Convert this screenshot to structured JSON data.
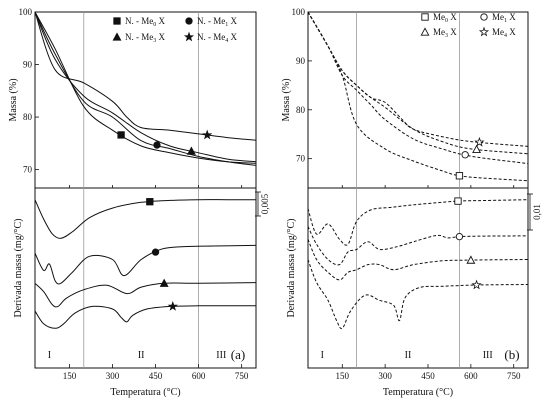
{
  "chart_data": [
    {
      "panel": "(a)",
      "type": "line",
      "top_plot": {
        "ylabel": "Massa (%)",
        "yticks": [
          "100",
          "90",
          "80",
          "70"
        ],
        "ylim": [
          66.5,
          100
        ],
        "series": [
          {
            "name": "N. - Me0 X",
            "marker": "square",
            "x": [
              30,
              100,
              200,
              300,
              400,
              500,
              600,
              700,
              800
            ],
            "y": [
              100,
              93,
              82,
              77.5,
              74.5,
              73.2,
              72.2,
              71.5,
              71.2
            ]
          },
          {
            "name": "N. - Me1 X",
            "marker": "circle",
            "x": [
              30,
              100,
              200,
              300,
              400,
              500,
              600,
              700,
              800
            ],
            "y": [
              100,
              92,
              83,
              80,
              75.5,
              74,
              72.5,
              71.5,
              70.8
            ]
          },
          {
            "name": "N. - Me3 X",
            "marker": "triangle",
            "x": [
              30,
              100,
              200,
              300,
              400,
              500,
              600,
              700,
              800
            ],
            "y": [
              100,
              91,
              84,
              80.8,
              77,
              74.5,
              73.2,
              72,
              71.5
            ]
          },
          {
            "name": "N. - Me4 X",
            "marker": "star",
            "x": [
              30,
              100,
              200,
              300,
              350,
              400,
              500,
              600,
              700,
              800
            ],
            "y": [
              100,
              89,
              86.5,
              83,
              80,
              78,
              77.5,
              76.8,
              76.1,
              75.6
            ]
          }
        ]
      },
      "bottom_plot": {
        "ylabel": "Derivada massa (mg/°C)",
        "scale_bar": "0,005",
        "series": [
          {
            "name": "N. - Me0 X",
            "marker": "square",
            "x": [
              30,
              60,
              90,
              120,
              160,
              220,
              300,
              400,
              500,
              600,
              700,
              800
            ],
            "y": [
              0.0048,
              0.0018,
              -0.0005,
              -0.0012,
              -0.0002,
              0.002,
              0.0035,
              0.0044,
              0.0047,
              0.0048,
              0.0048,
              0.0048
            ]
          },
          {
            "name": "N. - Me1 X",
            "marker": "circle",
            "x": [
              30,
              60,
              80,
              100,
              120,
              160,
              220,
              300,
              340,
              400,
              470,
              550,
              650,
              800
            ],
            "y": [
              -0.0035,
              -0.0062,
              -0.0052,
              -0.0078,
              -0.0082,
              -0.0065,
              -0.004,
              -0.0045,
              -0.007,
              -0.0045,
              -0.0029,
              -0.0025,
              -0.0024,
              -0.0023
            ]
          },
          {
            "name": "N. - Me3 X",
            "marker": "triangle",
            "x": [
              30,
              60,
              90,
              110,
              140,
              200,
              280,
              350,
              400,
              480,
              600,
              800
            ],
            "y": [
              -0.0082,
              -0.0095,
              -0.0115,
              -0.0118,
              -0.0105,
              -0.0092,
              -0.0085,
              -0.0098,
              -0.0088,
              -0.0082,
              -0.0082,
              -0.0081
            ]
          },
          {
            "name": "N. - Me4 X",
            "marker": "star",
            "x": [
              30,
              60,
              100,
              130,
              170,
              230,
              300,
              330,
              350,
              370,
              420,
              500,
              600,
              800
            ],
            "y": [
              -0.0125,
              -0.0145,
              -0.0152,
              -0.0145,
              -0.0128,
              -0.0118,
              -0.0122,
              -0.0135,
              -0.0142,
              -0.0132,
              -0.0122,
              -0.0118,
              -0.0117,
              -0.0117
            ]
          }
        ]
      },
      "xlabel": "Temperatura (°C)",
      "xticks": [
        "150",
        "300",
        "450",
        "600",
        "750"
      ],
      "xlim": [
        30,
        800
      ],
      "regions": [
        "I",
        "II",
        "III"
      ],
      "region_boundaries": [
        200,
        600
      ]
    },
    {
      "panel": "(b)",
      "type": "line",
      "top_plot": {
        "ylabel": "Massa (%)",
        "yticks": [
          "100",
          "90",
          "80",
          "70"
        ],
        "ylim": [
          64,
          100
        ],
        "series": [
          {
            "name": "Me0 X",
            "marker": "open-square",
            "x": [
              30,
              100,
              150,
              200,
              300,
              400,
              500,
              560,
              650,
              800
            ],
            "y": [
              100,
              93,
              87,
              77,
              72,
              69.5,
              67.5,
              66.5,
              66,
              65.5
            ]
          },
          {
            "name": "Me1 X",
            "marker": "open-circle",
            "x": [
              30,
              100,
              150,
              200,
              250,
              300,
              400,
              500,
              600,
              800
            ],
            "y": [
              100,
              93,
              87,
              84,
              81,
              78,
              74,
              72,
              70.5,
              69
            ]
          },
          {
            "name": "Me3 X",
            "marker": "open-triangle",
            "x": [
              30,
              100,
              150,
              200,
              250,
              300,
              400,
              500,
              600,
              800
            ],
            "y": [
              100,
              93,
              88,
              85,
              82.5,
              80.5,
              76,
              73.5,
              72,
              71
            ]
          },
          {
            "name": "Me4 X",
            "marker": "open-star",
            "x": [
              30,
              100,
              150,
              200,
              250,
              300,
              360,
              400,
              500,
              600,
              800
            ],
            "y": [
              100,
              93,
              88,
              85,
              82.5,
              81.5,
              78,
              76,
              74.5,
              73.5,
              72.5
            ]
          }
        ]
      },
      "bottom_plot": {
        "ylabel": "Derivada massa (mg/°C)",
        "scale_bar": "0,01",
        "series": [
          {
            "name": "Me0 X",
            "marker": "open-square",
            "x": [
              30,
              60,
              100,
              140,
              170,
              200,
              250,
              320,
              400,
              500,
              560,
              650,
              800
            ],
            "y": [
              0.002,
              -0.008,
              -0.004,
              -0.01,
              -0.012,
              -0.003,
              0.0015,
              0.0025,
              0.0035,
              0.0045,
              0.005,
              0.0052,
              0.0055
            ]
          },
          {
            "name": "Me1 X",
            "marker": "open-circle",
            "x": [
              30,
              60,
              100,
              140,
              170,
              200,
              240,
              280,
              340,
              400,
              460,
              490,
              520,
              560,
              650,
              800
            ],
            "y": [
              -0.005,
              -0.012,
              -0.018,
              -0.02,
              -0.015,
              -0.014,
              -0.011,
              -0.014,
              -0.013,
              -0.011,
              -0.009,
              -0.0085,
              -0.0095,
              -0.009,
              -0.0088,
              -0.0087
            ]
          },
          {
            "name": "Me3 X",
            "marker": "open-triangle",
            "x": [
              30,
              60,
              100,
              140,
              170,
              200,
              240,
              280,
              330,
              400,
              500,
              600,
              800
            ],
            "y": [
              -0.01,
              -0.018,
              -0.023,
              -0.026,
              -0.023,
              -0.022,
              -0.02,
              -0.02,
              -0.022,
              -0.02,
              -0.0185,
              -0.0182,
              -0.018
            ]
          },
          {
            "name": "Me4 X",
            "marker": "open-star",
            "x": [
              30,
              60,
              100,
              130,
              150,
              180,
              230,
              280,
              330,
              350,
              370,
              420,
              500,
              620,
              800
            ],
            "y": [
              -0.018,
              -0.027,
              -0.034,
              -0.042,
              -0.045,
              -0.038,
              -0.032,
              -0.034,
              -0.036,
              -0.042,
              -0.033,
              -0.029,
              -0.0285,
              -0.028,
              -0.0278
            ]
          }
        ]
      },
      "xlabel": "Temperatura (°C)",
      "xticks": [
        "150",
        "300",
        "450",
        "600",
        "750"
      ],
      "xlim": [
        30,
        800
      ],
      "regions": [
        "I",
        "II",
        "III"
      ],
      "region_boundaries": [
        200,
        560
      ]
    }
  ]
}
